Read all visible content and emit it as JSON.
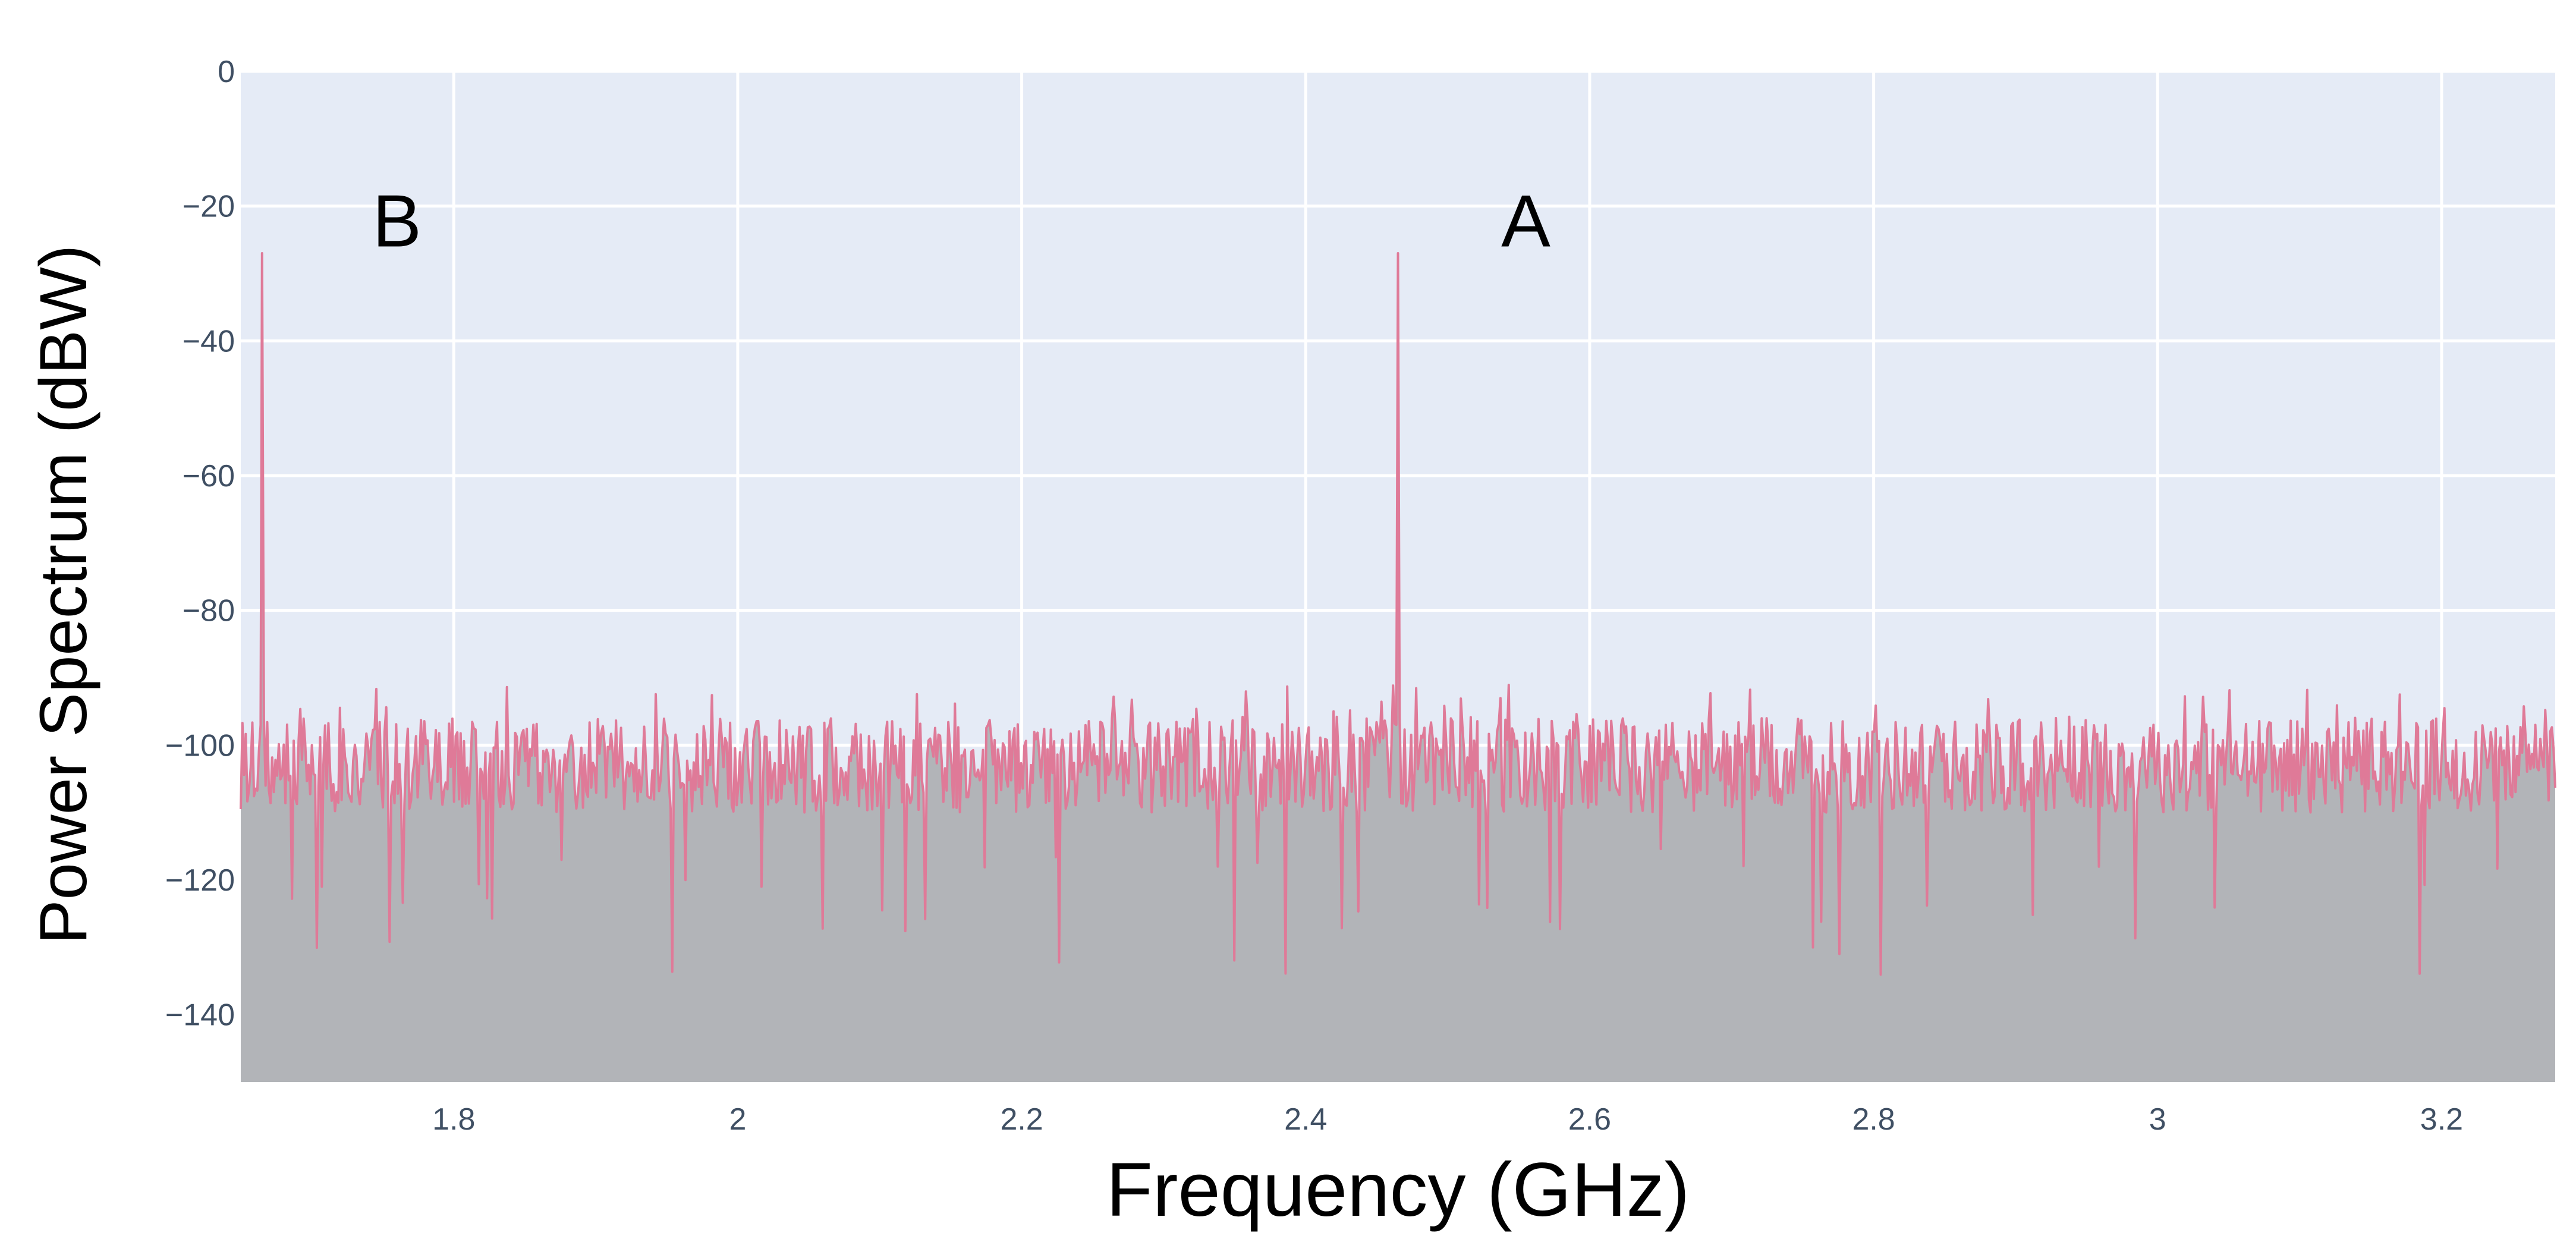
{
  "chart_data": {
    "type": "line",
    "title": "",
    "xlabel": "Frequency (GHz)",
    "ylabel": "Power Spectrum (dBW)",
    "xlim": [
      1.65,
      3.28
    ],
    "ylim": [
      -150,
      0
    ],
    "x_ticks": [
      1.8,
      2.0,
      2.2,
      2.4,
      2.6,
      2.8,
      3.0,
      3.2
    ],
    "x_tick_labels": [
      "1.8",
      "2",
      "2.2",
      "2.4",
      "2.6",
      "2.8",
      "3",
      "3.2"
    ],
    "y_ticks": [
      0,
      -20,
      -40,
      -60,
      -80,
      -100,
      -120,
      -140
    ],
    "y_tick_labels": [
      "0",
      "−20",
      "−40",
      "−60",
      "−80",
      "−100",
      "−120",
      "−140"
    ],
    "grid": true,
    "legend": "none",
    "colors": {
      "plot_background": "#e5ebf6",
      "grid": "#ffffff",
      "fill_below": "#b2b4b8",
      "series_line": "#df7a98"
    },
    "noise_floor_dbw": -103,
    "noise_min_dbw": -135,
    "noise_max_dbw": -91,
    "series": [
      {
        "values_description_free": true,
        "peaks": [
          {
            "x": 1.665,
            "y": -27
          },
          {
            "x": 2.465,
            "y": -27
          }
        ]
      }
    ],
    "annotations": [
      {
        "text": "B",
        "x": 1.76,
        "y": -26
      },
      {
        "text": "A",
        "x": 2.555,
        "y": -26
      }
    ]
  }
}
